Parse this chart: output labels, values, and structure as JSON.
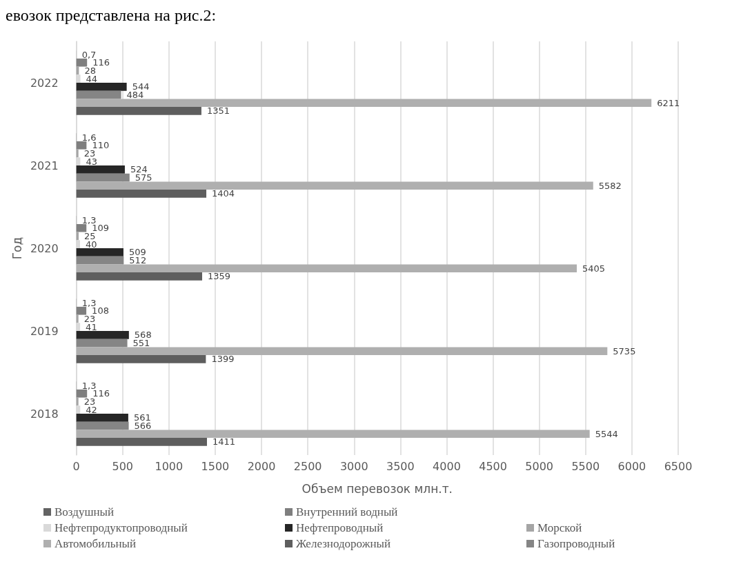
{
  "chart_data": {
    "type": "bar",
    "orientation": "horizontal",
    "xlabel": "Объем перевозок млн.т.",
    "ylabel": "Год",
    "annotations": [
      "евозок представлена на рис.2:"
    ],
    "categories": [
      "2022",
      "2021",
      "2020",
      "2019",
      "2018"
    ],
    "xlim": [
      0,
      6500
    ],
    "xticks": [
      0,
      500,
      1000,
      1500,
      2000,
      2500,
      3000,
      3500,
      4000,
      4500,
      5000,
      5500,
      6000,
      6500
    ],
    "grid": "x",
    "legend": "bottom",
    "series": [
      {
        "name": "Воздушный",
        "color": "#636363",
        "values": [
          0.7,
          1.6,
          1.3,
          1.3,
          1.3
        ],
        "value_labels": [
          "0,7",
          "1,6",
          "1,3",
          "1,3",
          "1,3"
        ]
      },
      {
        "name": "Внутренний водный",
        "color": "#7f7f7f",
        "values": [
          116,
          110,
          109,
          108,
          116
        ],
        "value_labels": [
          "116",
          "110",
          "109",
          "108",
          "116"
        ]
      },
      {
        "name": "Морской",
        "color": "#a5a5a5",
        "values": [
          28,
          23,
          25,
          23,
          23
        ],
        "value_labels": [
          "28",
          "23",
          "25",
          "23",
          "23"
        ]
      },
      {
        "name": "Нефтепродуктопроводный",
        "color": "#d9d9d9",
        "values": [
          44,
          43,
          40,
          41,
          42
        ],
        "value_labels": [
          "44",
          "43",
          "40",
          "41",
          "42"
        ]
      },
      {
        "name": "Нефтепроводный",
        "color": "#262626",
        "values": [
          544,
          524,
          509,
          568,
          561
        ],
        "value_labels": [
          "544",
          "524",
          "509",
          "568",
          "561"
        ]
      },
      {
        "name": "Газопроводный",
        "color": "#858585",
        "values": [
          484,
          575,
          512,
          551,
          566
        ],
        "value_labels": [
          "484",
          "575",
          "512",
          "551",
          "566"
        ]
      },
      {
        "name": "Автомобильный",
        "color": "#afafaf",
        "values": [
          6211,
          5582,
          5405,
          5735,
          5544
        ],
        "value_labels": [
          "6211",
          "5582",
          "5405",
          "5735",
          "5544"
        ]
      },
      {
        "name": "Железнодорожный",
        "color": "#5e5e5e",
        "values": [
          1351,
          1404,
          1359,
          1399,
          1411
        ],
        "value_labels": [
          "1351",
          "1404",
          "1359",
          "1399",
          "1411"
        ]
      }
    ]
  }
}
